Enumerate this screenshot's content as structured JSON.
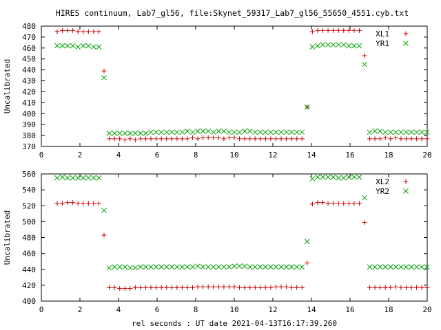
{
  "title": "HIRES continuum, Lab7_gl56, file:Skynet_59317_Lab7_gl56_55650_4551.cyb.txt",
  "xlabel": "rel seconds : UT date 2021-04-13T16:17:39.260",
  "chart_data": [
    {
      "type": "scatter",
      "ylabel": "Uncalibrated",
      "xlim": [
        0,
        20
      ],
      "ylim": [
        370,
        480
      ],
      "xticks": [
        0,
        2,
        4,
        6,
        8,
        10,
        12,
        14,
        16,
        18,
        20
      ],
      "yticks": [
        370,
        380,
        390,
        400,
        410,
        420,
        430,
        440,
        450,
        460,
        470,
        480
      ],
      "series": [
        {
          "name": "XL1",
          "marker": "plus",
          "color": "#cc0000",
          "x": [
            0.82,
            1.09,
            1.36,
            1.63,
            1.9,
            2.17,
            2.44,
            2.71,
            2.98,
            3.25,
            3.52,
            3.79,
            4.06,
            4.33,
            4.6,
            4.87,
            5.14,
            5.41,
            5.68,
            5.95,
            6.22,
            6.49,
            6.76,
            7.03,
            7.3,
            7.57,
            7.84,
            8.11,
            8.38,
            8.65,
            8.92,
            9.19,
            9.46,
            9.73,
            10.0,
            10.27,
            10.54,
            10.81,
            11.08,
            11.35,
            11.62,
            11.89,
            12.16,
            12.43,
            12.7,
            12.97,
            13.24,
            13.51,
            13.78,
            14.05,
            14.32,
            14.59,
            14.86,
            15.13,
            15.4,
            15.67,
            15.94,
            16.21,
            16.48,
            16.75,
            17.02,
            17.29,
            17.56,
            17.83,
            18.1,
            18.37,
            18.64,
            18.91,
            19.18,
            19.45,
            19.72,
            19.99
          ],
          "y": [
            475,
            476,
            476,
            476,
            475,
            475,
            475,
            475,
            475,
            439,
            377,
            377,
            377,
            376,
            377,
            376,
            377,
            377,
            377,
            377,
            377,
            377,
            377,
            377,
            377,
            377,
            378,
            377,
            378,
            378,
            378,
            378,
            377,
            378,
            378,
            377,
            377,
            377,
            377,
            377,
            377,
            377,
            377,
            377,
            377,
            377,
            377,
            377,
            406,
            475,
            476,
            476,
            476,
            476,
            476,
            476,
            476,
            476,
            476,
            453,
            377,
            377,
            377,
            378,
            377,
            378,
            377,
            377,
            377,
            377,
            377,
            377
          ]
        },
        {
          "name": "YR1",
          "marker": "cross",
          "color": "#00a000",
          "x": [
            0.82,
            1.09,
            1.36,
            1.63,
            1.9,
            2.17,
            2.44,
            2.71,
            2.98,
            3.25,
            3.52,
            3.79,
            4.06,
            4.33,
            4.6,
            4.87,
            5.14,
            5.41,
            5.68,
            5.95,
            6.22,
            6.49,
            6.76,
            7.03,
            7.3,
            7.57,
            7.84,
            8.11,
            8.38,
            8.65,
            8.92,
            9.19,
            9.46,
            9.73,
            10.0,
            10.27,
            10.54,
            10.81,
            11.08,
            11.35,
            11.62,
            11.89,
            12.16,
            12.43,
            12.7,
            12.97,
            13.24,
            13.51,
            13.78,
            14.05,
            14.32,
            14.59,
            14.86,
            15.13,
            15.4,
            15.67,
            15.94,
            16.21,
            16.48,
            16.75,
            17.02,
            17.29,
            17.56,
            17.83,
            18.1,
            18.37,
            18.64,
            18.91,
            19.18,
            19.45,
            19.72,
            19.99
          ],
          "y": [
            462,
            462,
            462,
            462,
            461,
            462,
            462,
            461,
            461,
            433,
            382,
            382,
            382,
            382,
            382,
            382,
            382,
            382,
            383,
            383,
            383,
            383,
            383,
            383,
            383,
            384,
            383,
            384,
            384,
            384,
            383,
            384,
            384,
            383,
            383,
            383,
            384,
            384,
            383,
            383,
            383,
            383,
            383,
            383,
            383,
            383,
            383,
            383,
            406,
            461,
            462,
            463,
            463,
            463,
            463,
            463,
            462,
            462,
            462,
            445,
            383,
            384,
            384,
            383,
            383,
            383,
            383,
            383,
            383,
            383,
            383,
            383
          ]
        }
      ]
    },
    {
      "type": "scatter",
      "ylabel": "Uncalibrated",
      "xlim": [
        0,
        20
      ],
      "ylim": [
        400,
        560
      ],
      "xticks": [
        0,
        2,
        4,
        6,
        8,
        10,
        12,
        14,
        16,
        18,
        20
      ],
      "yticks": [
        400,
        420,
        440,
        460,
        480,
        500,
        520,
        540,
        560
      ],
      "series": [
        {
          "name": "XL2",
          "marker": "plus",
          "color": "#cc0000",
          "x": [
            0.82,
            1.09,
            1.36,
            1.63,
            1.9,
            2.17,
            2.44,
            2.71,
            2.98,
            3.25,
            3.52,
            3.79,
            4.06,
            4.33,
            4.6,
            4.87,
            5.14,
            5.41,
            5.68,
            5.95,
            6.22,
            6.49,
            6.76,
            7.03,
            7.3,
            7.57,
            7.84,
            8.11,
            8.38,
            8.65,
            8.92,
            9.19,
            9.46,
            9.73,
            10.0,
            10.27,
            10.54,
            10.81,
            11.08,
            11.35,
            11.62,
            11.89,
            12.16,
            12.43,
            12.7,
            12.97,
            13.24,
            13.51,
            13.78,
            14.05,
            14.32,
            14.59,
            14.86,
            15.13,
            15.4,
            15.67,
            15.94,
            16.21,
            16.48,
            16.75,
            17.02,
            17.29,
            17.56,
            17.83,
            18.1,
            18.37,
            18.64,
            18.91,
            19.18,
            19.45,
            19.72,
            19.99
          ],
          "y": [
            523,
            523,
            524,
            524,
            523,
            523,
            523,
            523,
            523,
            483,
            417,
            417,
            416,
            416,
            416,
            417,
            417,
            417,
            417,
            417,
            417,
            417,
            417,
            417,
            417,
            417,
            417,
            418,
            418,
            418,
            418,
            418,
            418,
            418,
            418,
            417,
            417,
            417,
            417,
            417,
            417,
            417,
            418,
            418,
            418,
            417,
            417,
            417,
            448,
            522,
            524,
            524,
            523,
            523,
            523,
            523,
            523,
            523,
            523,
            499,
            417,
            417,
            417,
            417,
            417,
            418,
            417,
            417,
            417,
            417,
            417,
            417
          ]
        },
        {
          "name": "YR2",
          "marker": "cross",
          "color": "#00a000",
          "x": [
            0.82,
            1.09,
            1.36,
            1.63,
            1.9,
            2.17,
            2.44,
            2.71,
            2.98,
            3.25,
            3.52,
            3.79,
            4.06,
            4.33,
            4.6,
            4.87,
            5.14,
            5.41,
            5.68,
            5.95,
            6.22,
            6.49,
            6.76,
            7.03,
            7.3,
            7.57,
            7.84,
            8.11,
            8.38,
            8.65,
            8.92,
            9.19,
            9.46,
            9.73,
            10.0,
            10.27,
            10.54,
            10.81,
            11.08,
            11.35,
            11.62,
            11.89,
            12.16,
            12.43,
            12.7,
            12.97,
            13.24,
            13.51,
            13.78,
            14.05,
            14.32,
            14.59,
            14.86,
            15.13,
            15.4,
            15.67,
            15.94,
            16.21,
            16.48,
            16.75,
            17.02,
            17.29,
            17.56,
            17.83,
            18.1,
            18.37,
            18.64,
            18.91,
            19.18,
            19.45,
            19.72,
            19.99
          ],
          "y": [
            555,
            556,
            555,
            555,
            555,
            555,
            555,
            555,
            555,
            514,
            442,
            443,
            443,
            443,
            442,
            442,
            443,
            443,
            443,
            443,
            443,
            443,
            443,
            443,
            443,
            443,
            443,
            444,
            443,
            443,
            443,
            443,
            443,
            443,
            444,
            444,
            444,
            443,
            443,
            443,
            443,
            443,
            443,
            443,
            443,
            443,
            443,
            443,
            475,
            554,
            556,
            556,
            556,
            556,
            555,
            555,
            556,
            556,
            556,
            530,
            443,
            443,
            443,
            443,
            443,
            443,
            443,
            443,
            443,
            443,
            443,
            443
          ]
        }
      ]
    }
  ]
}
